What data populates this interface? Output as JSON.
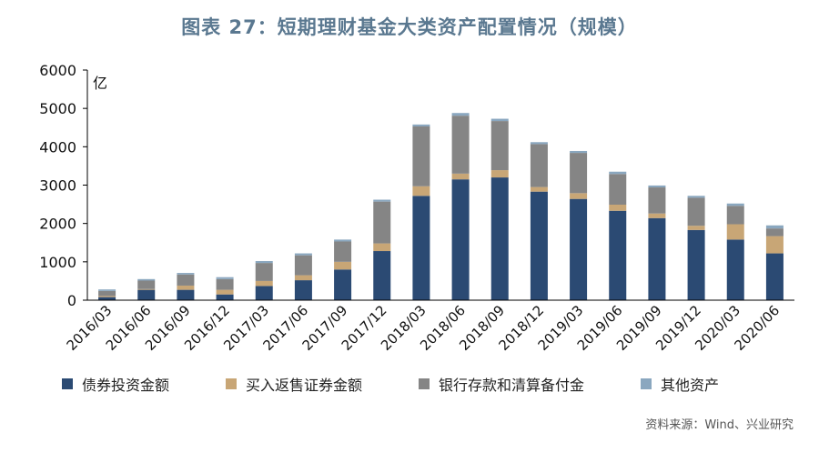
{
  "title": "图表 27：短期理财基金大类资产配置情况（规模）",
  "source": "资料来源：Wind、兴业研究",
  "chart_data": {
    "type": "bar",
    "stacked": true,
    "unit_label": "亿",
    "ylim": [
      0,
      6000
    ],
    "yticks": [
      0,
      1000,
      2000,
      3000,
      4000,
      5000,
      6000
    ],
    "categories": [
      "2016/03",
      "2016/06",
      "2016/09",
      "2016/12",
      "2017/03",
      "2017/06",
      "2017/09",
      "2017/12",
      "2018/03",
      "2018/06",
      "2018/09",
      "2018/12",
      "2019/03",
      "2019/06",
      "2019/09",
      "2019/12",
      "2020/03",
      "2020/06"
    ],
    "legend_position": "bottom",
    "series": [
      {
        "name": "债券投资金额",
        "color": "#2b4a73",
        "values": [
          80,
          270,
          270,
          150,
          370,
          520,
          800,
          1280,
          2720,
          3150,
          3200,
          2830,
          2640,
          2330,
          2140,
          1830,
          1580,
          1220
        ]
      },
      {
        "name": "买入返售证券金额",
        "color": "#c8a676",
        "values": [
          30,
          20,
          110,
          120,
          130,
          130,
          200,
          200,
          250,
          150,
          190,
          120,
          150,
          160,
          120,
          110,
          400,
          450
        ]
      },
      {
        "name": "银行存款和清算备付金",
        "color": "#858585",
        "values": [
          130,
          220,
          290,
          280,
          470,
          520,
          530,
          1090,
          1560,
          1510,
          1280,
          1120,
          1050,
          800,
          680,
          730,
          480,
          200
        ]
      },
      {
        "name": "其他资产",
        "color": "#8aa7bf",
        "values": [
          40,
          40,
          40,
          50,
          50,
          50,
          50,
          50,
          50,
          70,
          60,
          50,
          50,
          60,
          50,
          50,
          60,
          80
        ]
      }
    ]
  }
}
